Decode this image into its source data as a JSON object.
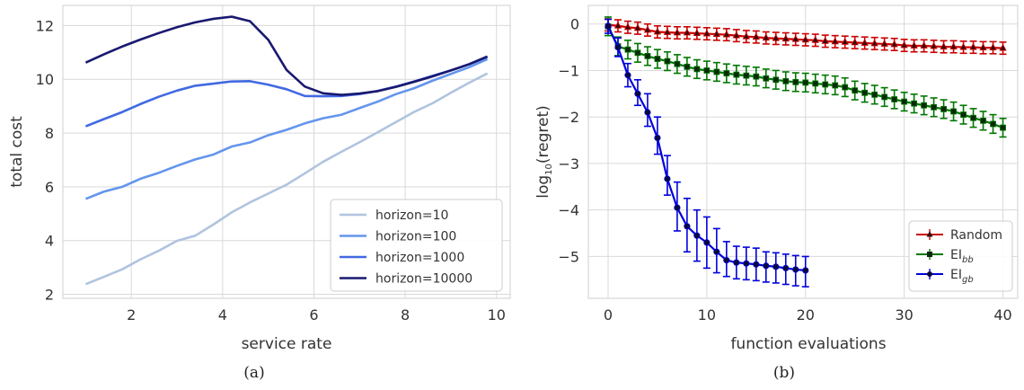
{
  "chart_data": [
    {
      "type": "line",
      "panel_label": "(a)",
      "xlabel": "service rate",
      "ylabel": "total cost",
      "xlim": [
        0.5,
        10.3
      ],
      "ylim": [
        1.85,
        12.75
      ],
      "xticks": [
        2,
        4,
        6,
        8,
        10
      ],
      "yticks": [
        2,
        4,
        6,
        8,
        10,
        12
      ],
      "grid": true,
      "legend_position": "bottom-right",
      "series": [
        {
          "name": "horizon=10",
          "color": "#b0c4de",
          "x": [
            1.0,
            1.4,
            1.8,
            2.2,
            2.6,
            3.0,
            3.4,
            3.8,
            4.2,
            4.6,
            5.0,
            5.4,
            5.8,
            6.2,
            6.6,
            7.0,
            7.4,
            7.8,
            8.2,
            8.6,
            9.0,
            9.4,
            9.8
          ],
          "y": [
            2.38,
            2.65,
            2.93,
            3.3,
            3.62,
            3.99,
            4.18,
            4.6,
            5.05,
            5.42,
            5.75,
            6.08,
            6.5,
            6.93,
            7.3,
            7.66,
            8.03,
            8.41,
            8.79,
            9.11,
            9.5,
            9.87,
            10.22
          ]
        },
        {
          "name": "horizon=100",
          "color": "#6495ed",
          "x": [
            1.0,
            1.4,
            1.8,
            2.2,
            2.6,
            3.0,
            3.4,
            3.8,
            4.2,
            4.6,
            5.0,
            5.4,
            5.8,
            6.2,
            6.6,
            7.0,
            7.4,
            7.8,
            8.2,
            8.6,
            9.0,
            9.4,
            9.8
          ],
          "y": [
            5.55,
            5.82,
            6.0,
            6.3,
            6.52,
            6.78,
            7.02,
            7.2,
            7.5,
            7.65,
            7.92,
            8.12,
            8.36,
            8.55,
            8.68,
            8.93,
            9.17,
            9.45,
            9.67,
            9.95,
            10.2,
            10.45,
            10.75
          ]
        },
        {
          "name": "horizon=1000",
          "color": "#4169e1",
          "x": [
            1.0,
            1.4,
            1.8,
            2.2,
            2.6,
            3.0,
            3.4,
            3.8,
            4.2,
            4.6,
            5.0,
            5.4,
            5.8,
            6.2,
            6.6,
            7.0,
            7.4,
            7.8,
            8.2,
            8.6,
            9.0,
            9.4,
            9.8
          ],
          "y": [
            8.25,
            8.52,
            8.78,
            9.08,
            9.35,
            9.58,
            9.76,
            9.84,
            9.92,
            9.93,
            9.8,
            9.63,
            9.38,
            9.37,
            9.38,
            9.45,
            9.57,
            9.73,
            9.92,
            10.13,
            10.33,
            10.56,
            10.83
          ]
        },
        {
          "name": "horizon=10000",
          "color": "#191970",
          "x": [
            1.0,
            1.4,
            1.8,
            2.2,
            2.6,
            3.0,
            3.4,
            3.8,
            4.2,
            4.6,
            5.0,
            5.4,
            5.8,
            6.2,
            6.6,
            7.0,
            7.4,
            7.8,
            8.2,
            8.6,
            9.0,
            9.4,
            9.8
          ],
          "y": [
            10.62,
            10.93,
            11.22,
            11.48,
            11.72,
            11.94,
            12.12,
            12.25,
            12.33,
            12.16,
            11.47,
            10.35,
            9.73,
            9.48,
            9.42,
            9.47,
            9.56,
            9.72,
            9.91,
            10.11,
            10.33,
            10.56,
            10.85
          ]
        }
      ]
    },
    {
      "type": "line",
      "panel_label": "(b)",
      "xlabel": "function evaluations",
      "ylabel": "log10(regret)",
      "xlim": [
        -2,
        41.5
      ],
      "ylim": [
        -5.9,
        0.4
      ],
      "xticks": [
        0,
        10,
        20,
        30,
        40
      ],
      "yticks": [
        0,
        -1,
        -2,
        -3,
        -4,
        -5
      ],
      "grid": true,
      "legend_position": "bottom-right",
      "series": [
        {
          "name": "Random",
          "name_base": "Random",
          "name_sub": "",
          "color": "#cc0000",
          "marker": "triangle",
          "x": [
            0,
            1,
            2,
            3,
            4,
            5,
            6,
            7,
            8,
            9,
            10,
            11,
            12,
            13,
            14,
            15,
            16,
            17,
            18,
            19,
            20,
            21,
            22,
            23,
            24,
            25,
            26,
            27,
            28,
            29,
            30,
            31,
            32,
            33,
            34,
            35,
            36,
            37,
            38,
            39,
            40
          ],
          "y": [
            -0.02,
            -0.04,
            -0.07,
            -0.09,
            -0.13,
            -0.17,
            -0.18,
            -0.19,
            -0.19,
            -0.2,
            -0.21,
            -0.22,
            -0.23,
            -0.25,
            -0.27,
            -0.28,
            -0.3,
            -0.31,
            -0.32,
            -0.33,
            -0.34,
            -0.35,
            -0.37,
            -0.38,
            -0.39,
            -0.4,
            -0.41,
            -0.42,
            -0.43,
            -0.44,
            -0.46,
            -0.47,
            -0.47,
            -0.48,
            -0.49,
            -0.49,
            -0.5,
            -0.5,
            -0.51,
            -0.51,
            -0.52
          ],
          "err": 0.13
        },
        {
          "name": "EIbb",
          "name_base": "EI",
          "name_sub": "bb",
          "color": "#007700",
          "marker": "square",
          "x": [
            0,
            1,
            2,
            3,
            4,
            5,
            6,
            7,
            8,
            9,
            10,
            11,
            12,
            13,
            14,
            15,
            16,
            17,
            18,
            19,
            20,
            21,
            22,
            23,
            24,
            25,
            26,
            27,
            28,
            29,
            30,
            31,
            32,
            33,
            34,
            35,
            36,
            37,
            38,
            39,
            40
          ],
          "y": [
            -0.05,
            -0.48,
            -0.55,
            -0.62,
            -0.69,
            -0.75,
            -0.8,
            -0.86,
            -0.92,
            -0.97,
            -1.0,
            -1.03,
            -1.06,
            -1.09,
            -1.11,
            -1.13,
            -1.17,
            -1.2,
            -1.23,
            -1.25,
            -1.26,
            -1.28,
            -1.3,
            -1.32,
            -1.36,
            -1.43,
            -1.48,
            -1.52,
            -1.57,
            -1.62,
            -1.67,
            -1.71,
            -1.75,
            -1.79,
            -1.83,
            -1.88,
            -1.95,
            -2.02,
            -2.08,
            -2.15,
            -2.23
          ],
          "err": 0.2
        },
        {
          "name": "EIgb",
          "name_base": "EI",
          "name_sub": "gb",
          "color": "#0000dd",
          "marker": "circle",
          "x": [
            0,
            1,
            2,
            3,
            4,
            5,
            6,
            7,
            8,
            9,
            10,
            11,
            12,
            13,
            14,
            15,
            16,
            17,
            18,
            19,
            20
          ],
          "y": [
            -0.05,
            -0.5,
            -1.1,
            -1.5,
            -1.9,
            -2.45,
            -3.33,
            -3.95,
            -4.35,
            -4.55,
            -4.7,
            -4.9,
            -5.08,
            -5.13,
            -5.15,
            -5.17,
            -5.2,
            -5.22,
            -5.25,
            -5.28,
            -5.3
          ],
          "err_low": [
            0.15,
            0.2,
            0.25,
            0.25,
            0.3,
            0.35,
            0.35,
            0.5,
            0.55,
            0.55,
            0.55,
            0.45,
            0.35,
            0.35,
            0.35,
            0.35,
            0.35,
            0.35,
            0.35,
            0.35,
            0.35
          ],
          "err_high": [
            0.15,
            0.2,
            0.25,
            0.3,
            0.4,
            0.45,
            0.5,
            0.55,
            0.6,
            0.55,
            0.55,
            0.5,
            0.4,
            0.35,
            0.35,
            0.35,
            0.3,
            0.3,
            0.3,
            0.3,
            0.3
          ]
        }
      ]
    }
  ]
}
